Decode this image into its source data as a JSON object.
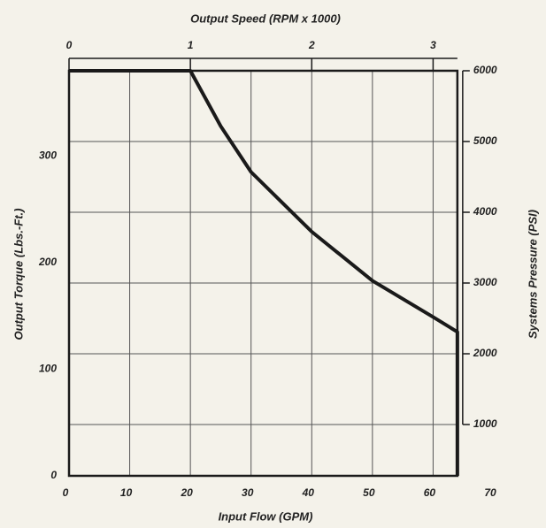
{
  "chart_data": {
    "type": "line",
    "x2label": "Output Speed (RPM x 1000)",
    "xlabel": "Input Flow (GPM)",
    "ylabel": "Output Torque (Lbs.-Ft.)",
    "y2label": "Systems Pressure (PSI)",
    "x": [
      0,
      20,
      25,
      30,
      40,
      50,
      60,
      64,
      64
    ],
    "series": [
      {
        "color": "#1a1a1a",
        "values": [
          380,
          380,
          328,
          285,
          229,
          183,
          149,
          135,
          0
        ]
      }
    ],
    "xlim": [
      0,
      70
    ],
    "xticks": [
      0,
      10,
      20,
      30,
      40,
      50,
      60,
      70
    ],
    "x2lim": [
      0,
      3.5
    ],
    "x2ticks": [
      0,
      1,
      2,
      3
    ],
    "ylim": [
      0,
      380
    ],
    "yticks": [
      0,
      100,
      200,
      300
    ],
    "y2lim": [
      275,
      6000
    ],
    "y2ticks": [
      1000,
      2000,
      3000,
      4000,
      5000,
      6000
    ],
    "grid": true
  }
}
